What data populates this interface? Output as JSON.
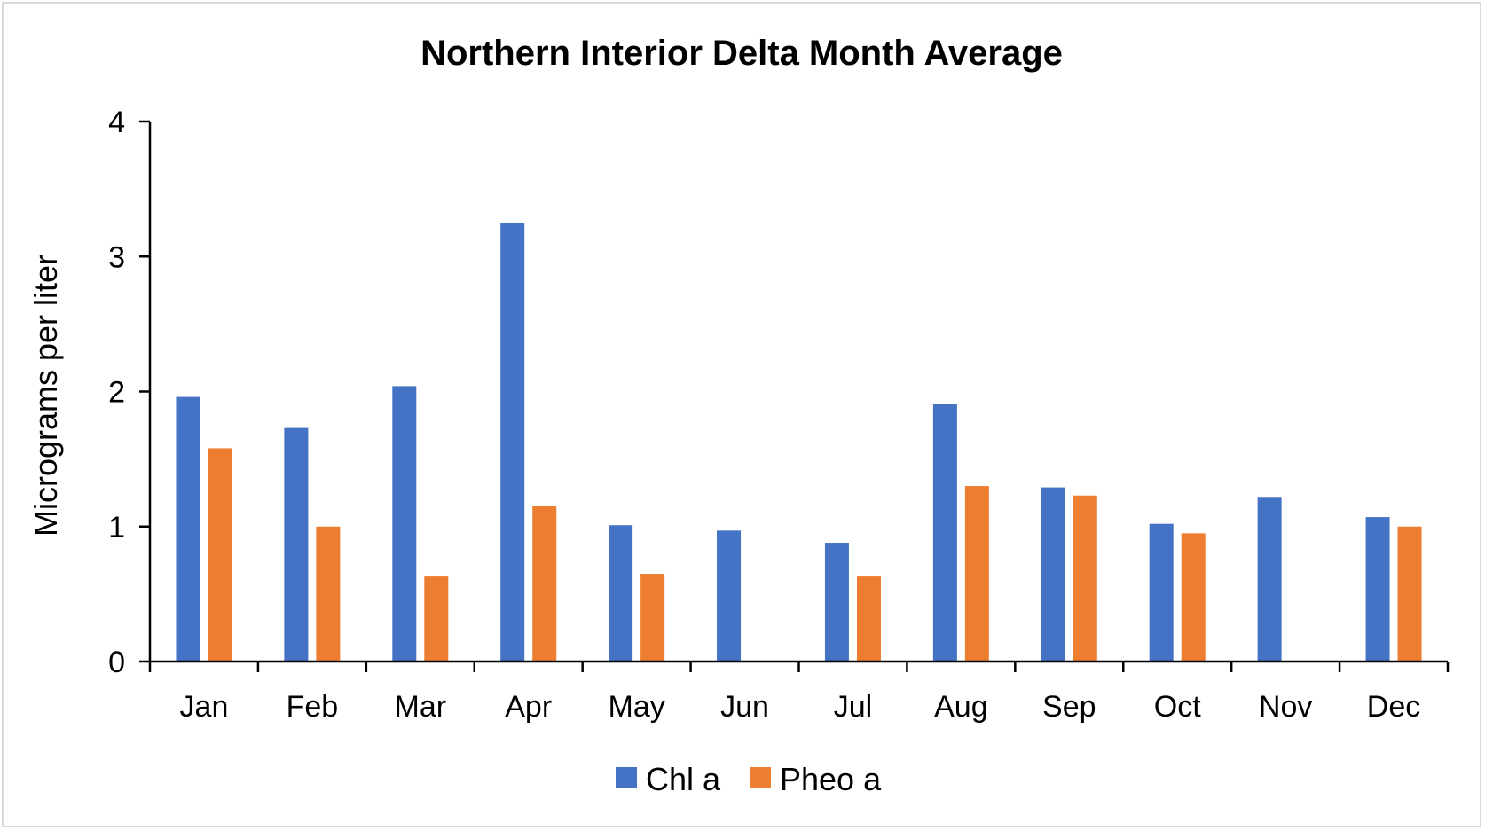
{
  "chart_data": {
    "type": "bar",
    "title": "Northern Interior Delta Month Average",
    "xlabel": "",
    "ylabel": "Micrograms per liter",
    "categories": [
      "Jan",
      "Feb",
      "Mar",
      "Apr",
      "May",
      "Jun",
      "Jul",
      "Aug",
      "Sep",
      "Oct",
      "Nov",
      "Dec"
    ],
    "series": [
      {
        "name": "Chl a",
        "color": "#4472c4",
        "values": [
          1.96,
          1.73,
          2.04,
          3.25,
          1.01,
          0.97,
          0.88,
          1.91,
          1.29,
          1.02,
          1.22,
          1.07
        ]
      },
      {
        "name": "Pheo a",
        "color": "#ed7d31",
        "values": [
          1.58,
          1.0,
          0.63,
          1.15,
          0.65,
          null,
          0.63,
          1.3,
          1.23,
          0.95,
          null,
          1.0
        ]
      }
    ],
    "ylim": [
      0,
      4
    ],
    "yticks": [
      0,
      1,
      2,
      3,
      4
    ],
    "grid": false,
    "legend": "bottom"
  }
}
